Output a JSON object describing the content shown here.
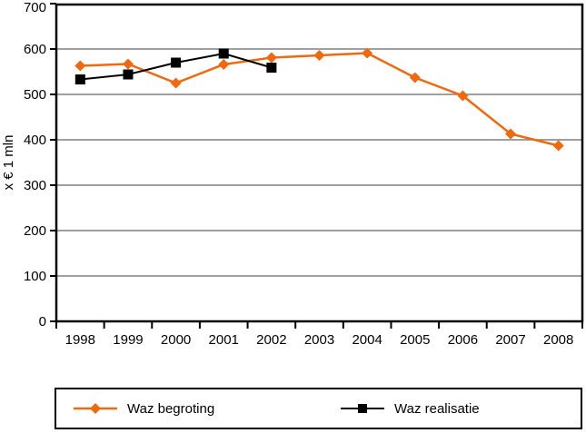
{
  "chart_data": {
    "type": "line",
    "title": "",
    "xlabel": "",
    "ylabel": "x € 1 mln",
    "categories": [
      "1998",
      "1999",
      "2000",
      "2001",
      "2002",
      "2003",
      "2004",
      "2005",
      "2006",
      "2007",
      "2008"
    ],
    "series": [
      {
        "name": "Waz begroting",
        "color": "#F0690F",
        "marker": "diamond",
        "values": [
          563,
          567,
          525,
          566,
          581,
          586,
          591,
          537,
          497,
          413,
          387
        ]
      },
      {
        "name": "Waz realisatie",
        "color": "#000000",
        "marker": "square",
        "values": [
          533,
          544,
          570,
          590,
          559,
          null,
          null,
          null,
          null,
          null,
          null
        ]
      }
    ],
    "ylim": [
      0,
      700
    ],
    "yticks": [
      0,
      100,
      200,
      300,
      400,
      500,
      600,
      700
    ],
    "grid": "horizontal",
    "gridline_color": "#808080",
    "frame_color": "#000000",
    "background_color": "#ffffff",
    "legend_position": "bottom"
  }
}
